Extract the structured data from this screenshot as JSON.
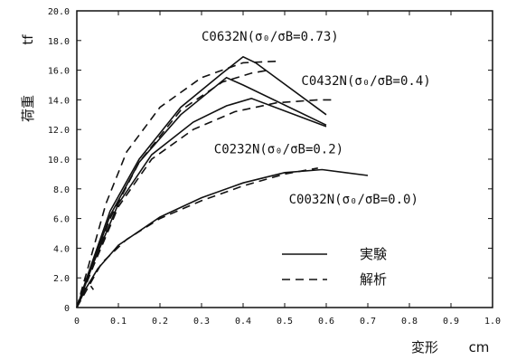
{
  "chart_data": {
    "type": "line",
    "xlabel": "変形",
    "xunit": "cm",
    "ylabel": "荷重",
    "yunit": "tf",
    "xlim": [
      0,
      1.0
    ],
    "ylim": [
      0,
      20.0
    ],
    "xticks": [
      "0",
      "0.1",
      "0.2",
      "0.3",
      "0.4",
      "0.5",
      "0.6",
      "0.7",
      "0.8",
      "0.9",
      "1.0"
    ],
    "yticks": [
      "0",
      "2.0",
      "4.0",
      "6.0",
      "8.0",
      "10.0",
      "12.0",
      "14.0",
      "16.0",
      "18.0",
      "20.0"
    ],
    "grid": false,
    "legend": {
      "placement": "bottom-right",
      "entries": [
        {
          "label": "実験",
          "style": "solid"
        },
        {
          "label": "解析",
          "style": "dashed"
        }
      ]
    },
    "annotations": [
      {
        "text": "C0632N(σ₀/σB=0.73)",
        "x": 0.3,
        "y": 18.0
      },
      {
        "text": "C0432N(σ₀/σB=0.4)",
        "x": 0.54,
        "y": 15.0
      },
      {
        "text": "C0232N(σ₀/σB=0.2)",
        "x": 0.33,
        "y": 10.4
      },
      {
        "text": "C0032N(σ₀/σB=0.0)",
        "x": 0.51,
        "y": 7.0
      }
    ],
    "series": [
      {
        "style": "solid",
        "x": [
          0,
          0.03,
          0.08,
          0.15,
          0.25,
          0.35,
          0.4,
          0.43,
          0.6
        ],
        "y": [
          0,
          2.5,
          6.5,
          10.0,
          13.5,
          15.8,
          16.9,
          16.5,
          13.0
        ]
      },
      {
        "style": "dashed",
        "x": [
          0,
          0.03,
          0.07,
          0.12,
          0.2,
          0.3,
          0.4,
          0.48
        ],
        "y": [
          0,
          3.0,
          7.0,
          10.5,
          13.5,
          15.5,
          16.5,
          16.6
        ]
      },
      {
        "style": "solid",
        "x": [
          0,
          0.03,
          0.08,
          0.15,
          0.25,
          0.36,
          0.4,
          0.6
        ],
        "y": [
          0,
          2.3,
          6.2,
          9.8,
          13.0,
          15.5,
          15.0,
          12.3
        ]
      },
      {
        "style": "dashed",
        "x": [
          0,
          0.04,
          0.08,
          0.15,
          0.25,
          0.35,
          0.42,
          0.46
        ],
        "y": [
          0,
          3.0,
          6.0,
          9.8,
          13.3,
          15.2,
          15.8,
          16.0
        ]
      },
      {
        "style": "solid",
        "x": [
          0,
          0.04,
          0.1,
          0.18,
          0.28,
          0.36,
          0.42,
          0.6
        ],
        "y": [
          0,
          3.0,
          7.0,
          10.3,
          12.5,
          13.6,
          14.1,
          12.2
        ]
      },
      {
        "style": "dashed",
        "x": [
          0,
          0.04,
          0.1,
          0.18,
          0.28,
          0.38,
          0.48,
          0.58,
          0.62
        ],
        "y": [
          0,
          2.8,
          6.8,
          10.0,
          12.0,
          13.2,
          13.8,
          14.0,
          14.0
        ]
      },
      {
        "style": "solid",
        "x": [
          0,
          0.02,
          0.05,
          0.1,
          0.2,
          0.3,
          0.4,
          0.5,
          0.59,
          0.7
        ],
        "y": [
          0,
          1.2,
          2.6,
          4.2,
          6.1,
          7.4,
          8.4,
          9.1,
          9.3,
          8.9
        ]
      },
      {
        "style": "dashed",
        "x": [
          0,
          0.03,
          0.06,
          0.12,
          0.2,
          0.3,
          0.4,
          0.5,
          0.58
        ],
        "y": [
          0,
          1.5,
          3.0,
          4.6,
          6.0,
          7.2,
          8.2,
          9.0,
          9.4
        ]
      },
      {
        "style": "dashed",
        "x": [
          0,
          0.02,
          0.04
        ],
        "y": [
          0,
          2.0,
          1.2
        ]
      }
    ]
  }
}
